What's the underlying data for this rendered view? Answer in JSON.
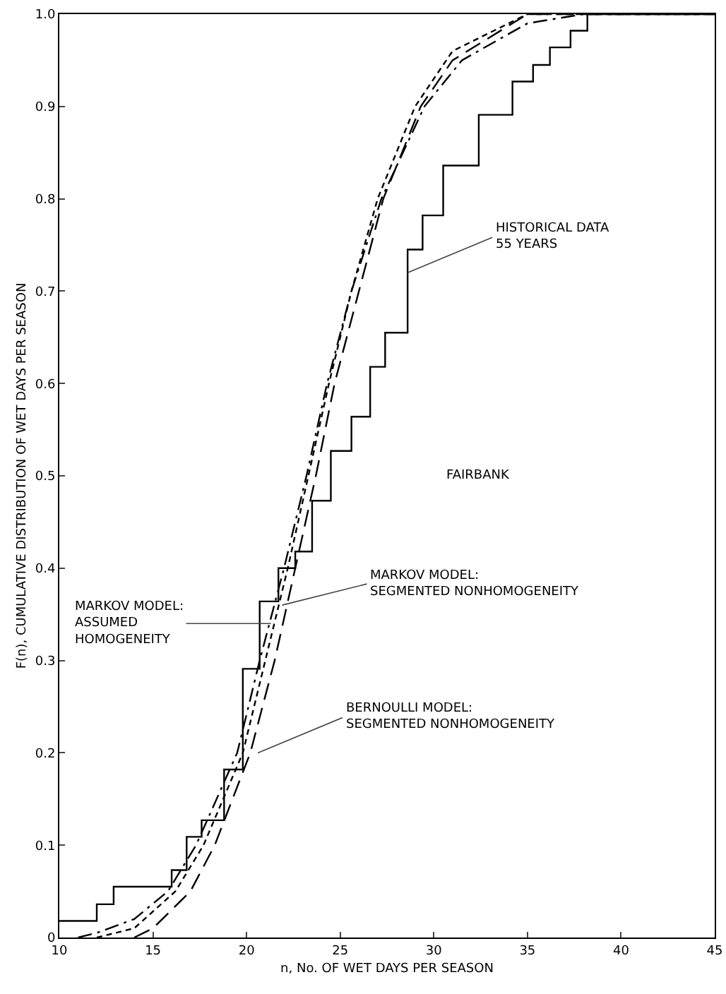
{
  "chart_data": {
    "type": "line",
    "xlabel": "n, No. OF WET DAYS PER SEASON",
    "ylabel": "F(n), CUMULATIVE DISTRIBUTION OF WET DAYS PER SEASON",
    "xlim": [
      10,
      45
    ],
    "ylim": [
      0,
      1.0
    ],
    "xticks": [
      10,
      15,
      20,
      25,
      30,
      35,
      40,
      45
    ],
    "yticks": [
      0,
      0.1,
      0.2,
      0.3,
      0.4,
      0.5,
      0.6,
      0.7,
      0.8,
      0.9,
      {
        "value": 1,
        "label": "1.0"
      }
    ],
    "series": [
      {
        "type": "step",
        "color": "#000000",
        "line_style": "solid",
        "x": [
          10,
          12.0,
          12.9,
          16.0,
          16.8,
          17.6,
          18.8,
          19.8,
          20.7,
          21.7,
          22.6,
          23.5,
          24.5,
          25.6,
          26.6,
          27.4,
          28.6,
          29.4,
          30.5,
          32.4,
          34.2,
          35.3,
          36.2,
          37.3,
          38.2,
          45
        ],
        "values": [
          0.018,
          0.036,
          0.055,
          0.073,
          0.109,
          0.127,
          0.182,
          0.291,
          0.364,
          0.4,
          0.418,
          0.473,
          0.527,
          0.564,
          0.618,
          0.655,
          0.745,
          0.782,
          0.836,
          0.891,
          0.927,
          0.945,
          0.964,
          0.982,
          1.0,
          1.0
        ]
      },
      {
        "type": "line",
        "color": "#000000",
        "line_style": "dashdot",
        "x": [
          11,
          12,
          14,
          15.8,
          17.3,
          19.5,
          20.7,
          22,
          23.2,
          24.3,
          25.6,
          27.2,
          29.5,
          31.5,
          35,
          38,
          45
        ],
        "values": [
          0,
          0.005,
          0.02,
          0.05,
          0.1,
          0.2,
          0.3,
          0.4,
          0.5,
          0.6,
          0.7,
          0.8,
          0.9,
          0.95,
          0.99,
          1.0,
          1.0
        ]
      },
      {
        "type": "line",
        "color": "#000000",
        "line_style": "dotted",
        "x": [
          12,
          14,
          16.2,
          17.7,
          19.8,
          21,
          22.2,
          23.3,
          24.4,
          25.6,
          27,
          29,
          31,
          35,
          45
        ],
        "values": [
          0,
          0.01,
          0.05,
          0.1,
          0.2,
          0.3,
          0.4,
          0.5,
          0.6,
          0.7,
          0.8,
          0.9,
          0.96,
          1.0,
          1.0
        ]
      },
      {
        "type": "line",
        "color": "#000000",
        "line_style": "dashed",
        "x": [
          14,
          15,
          17,
          18.3,
          20.2,
          21.5,
          22.6,
          23.7,
          24.7,
          26,
          27.3,
          29.3,
          31,
          35,
          45
        ],
        "values": [
          0,
          0.01,
          0.05,
          0.1,
          0.2,
          0.3,
          0.4,
          0.5,
          0.6,
          0.7,
          0.8,
          0.9,
          0.95,
          1.0,
          1.0
        ]
      }
    ],
    "annotations": [
      {
        "text": "HISTORICAL DATA\n55 YEARS",
        "x": 28.6,
        "y": 0.72
      },
      "FAIRBANK",
      {
        "text": "MARKOV MODEL:\nASSUMED\nHOMOGENEITY",
        "x": 21.3,
        "y": 0.34
      },
      {
        "text": "MARKOV MODEL:\nSEGMENTED NONHOMOGENEITY",
        "x": 21.9,
        "y": 0.36
      },
      {
        "text": "BERNOULLI MODEL:\nSEGMENTED NONHOMOGENEITY",
        "x": 20.6,
        "y": 0.2
      }
    ]
  }
}
